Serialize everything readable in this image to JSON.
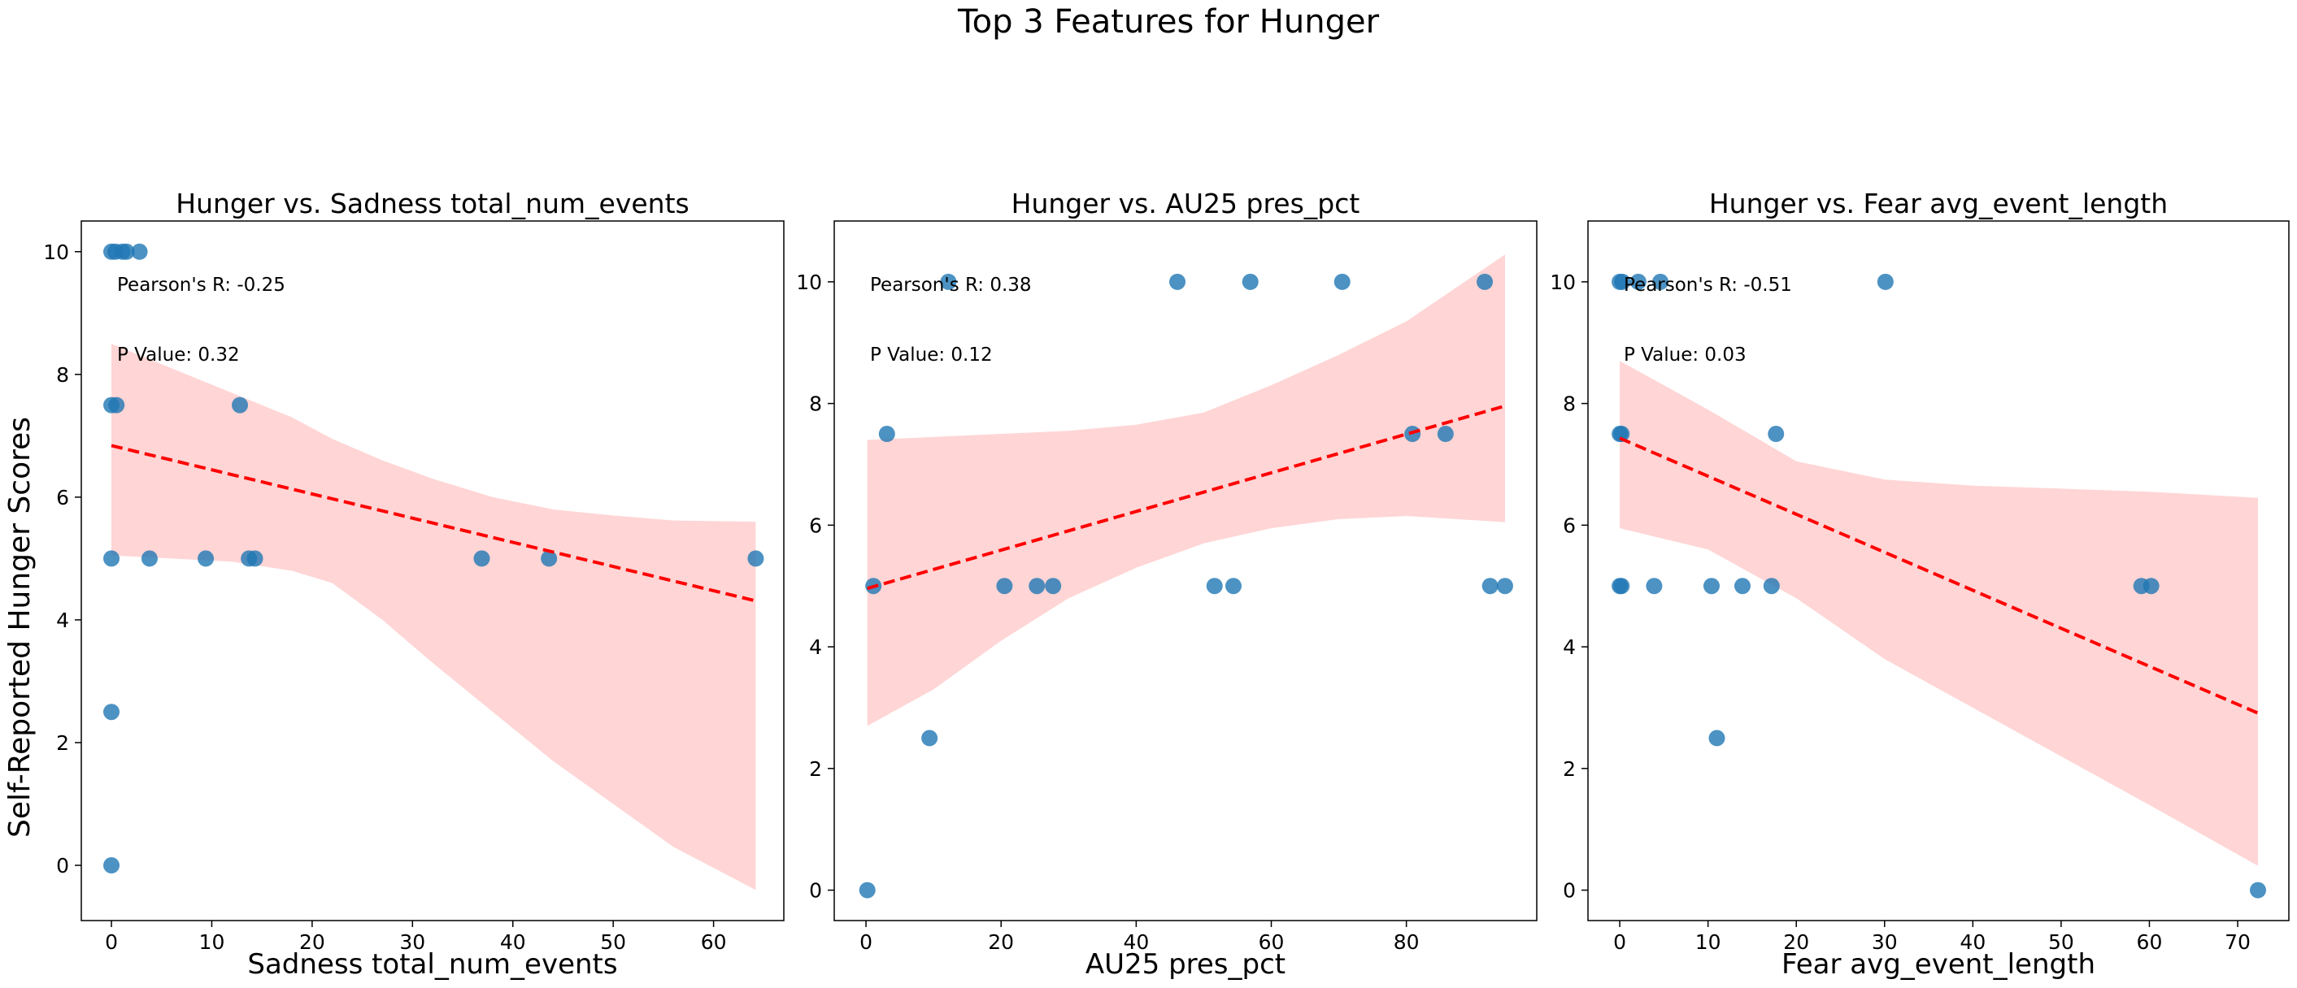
{
  "figure": {
    "suptitle": "Top 3 Features for Hunger",
    "shared_ylabel": "Self-Reported Hunger Scores"
  },
  "colors": {
    "points": "#1f77b4",
    "regression_line": "#ff0000",
    "confidence_band": "#ffb3b3"
  },
  "chart_data": [
    {
      "type": "scatter",
      "title": "Hunger vs. Sadness total_num_events",
      "xlabel": "Sadness total_num_events",
      "ylabel": "Self-Reported Hunger Scores",
      "xlim": [
        -3,
        67
      ],
      "ylim": [
        -0.9,
        10.5
      ],
      "xticks": [
        0,
        10,
        20,
        30,
        40,
        50,
        60
      ],
      "yticks": [
        0,
        2,
        4,
        6,
        8,
        10
      ],
      "annotations": [
        "Pearson's R: -0.25",
        "P Value: 0.32"
      ],
      "points": [
        {
          "x": 0,
          "y": 10
        },
        {
          "x": 0.4,
          "y": 10
        },
        {
          "x": 1.1,
          "y": 10
        },
        {
          "x": 1.5,
          "y": 10
        },
        {
          "x": 2.8,
          "y": 10
        },
        {
          "x": 0,
          "y": 7.5
        },
        {
          "x": 0.5,
          "y": 7.5
        },
        {
          "x": 12.8,
          "y": 7.5
        },
        {
          "x": 0,
          "y": 5
        },
        {
          "x": 3.8,
          "y": 5
        },
        {
          "x": 9.4,
          "y": 5
        },
        {
          "x": 13.7,
          "y": 5
        },
        {
          "x": 14.3,
          "y": 5
        },
        {
          "x": 36.9,
          "y": 5
        },
        {
          "x": 43.6,
          "y": 5
        },
        {
          "x": 64.2,
          "y": 5
        },
        {
          "x": 0,
          "y": 2.5
        },
        {
          "x": 0,
          "y": 0
        }
      ],
      "regression": {
        "x": [
          0,
          64.2
        ],
        "y": [
          6.84,
          4.31
        ]
      },
      "band": [
        {
          "x": 0,
          "lo": 5.05,
          "hi": 8.5
        },
        {
          "x": 6,
          "lo": 5.0,
          "hi": 8.1
        },
        {
          "x": 12,
          "lo": 4.95,
          "hi": 7.7
        },
        {
          "x": 18,
          "lo": 4.8,
          "hi": 7.3
        },
        {
          "x": 22,
          "lo": 4.6,
          "hi": 6.95
        },
        {
          "x": 27,
          "lo": 4.0,
          "hi": 6.6
        },
        {
          "x": 32,
          "lo": 3.3,
          "hi": 6.3
        },
        {
          "x": 38,
          "lo": 2.5,
          "hi": 6.0
        },
        {
          "x": 44,
          "lo": 1.7,
          "hi": 5.8
        },
        {
          "x": 50,
          "lo": 1.0,
          "hi": 5.7
        },
        {
          "x": 56,
          "lo": 0.3,
          "hi": 5.62
        },
        {
          "x": 64.2,
          "lo": -0.4,
          "hi": 5.6
        }
      ]
    },
    {
      "type": "scatter",
      "title": "Hunger vs. AU25 pres_pct",
      "xlabel": "AU25 pres_pct",
      "ylabel": "",
      "xlim": [
        -4.7,
        99.3
      ],
      "ylim": [
        -0.5,
        11.0
      ],
      "xticks": [
        0,
        20,
        40,
        60,
        80
      ],
      "yticks": [
        0,
        2,
        4,
        6,
        8,
        10
      ],
      "annotations": [
        "Pearson's R: 0.38",
        "P Value: 0.12"
      ],
      "points": [
        {
          "x": 0.2,
          "y": 0
        },
        {
          "x": 1.1,
          "y": 5
        },
        {
          "x": 3.1,
          "y": 7.5
        },
        {
          "x": 9.4,
          "y": 2.5
        },
        {
          "x": 12.2,
          "y": 10
        },
        {
          "x": 20.5,
          "y": 5
        },
        {
          "x": 25.3,
          "y": 5
        },
        {
          "x": 27.7,
          "y": 5
        },
        {
          "x": 46.1,
          "y": 10
        },
        {
          "x": 51.6,
          "y": 5
        },
        {
          "x": 54.4,
          "y": 5
        },
        {
          "x": 56.9,
          "y": 10
        },
        {
          "x": 70.5,
          "y": 10
        },
        {
          "x": 80.9,
          "y": 7.5
        },
        {
          "x": 85.8,
          "y": 7.5
        },
        {
          "x": 91.6,
          "y": 10
        },
        {
          "x": 92.4,
          "y": 5
        },
        {
          "x": 94.6,
          "y": 5
        }
      ],
      "regression": {
        "x": [
          0.2,
          94.6
        ],
        "y": [
          4.96,
          7.96
        ]
      },
      "band": [
        {
          "x": 0.2,
          "lo": 2.7,
          "hi": 7.4
        },
        {
          "x": 10,
          "lo": 3.3,
          "hi": 7.45
        },
        {
          "x": 20,
          "lo": 4.1,
          "hi": 7.5
        },
        {
          "x": 30,
          "lo": 4.8,
          "hi": 7.55
        },
        {
          "x": 40,
          "lo": 5.3,
          "hi": 7.65
        },
        {
          "x": 50,
          "lo": 5.7,
          "hi": 7.85
        },
        {
          "x": 60,
          "lo": 5.95,
          "hi": 8.3
        },
        {
          "x": 70,
          "lo": 6.1,
          "hi": 8.8
        },
        {
          "x": 80,
          "lo": 6.15,
          "hi": 9.35
        },
        {
          "x": 94.6,
          "lo": 6.05,
          "hi": 10.45
        }
      ]
    },
    {
      "type": "scatter",
      "title": "Hunger vs. Fear avg_event_length",
      "xlabel": "Fear avg_event_length",
      "ylabel": "",
      "xlim": [
        -3.6,
        75.8
      ],
      "ylim": [
        -0.5,
        11.0
      ],
      "xticks": [
        0,
        10,
        20,
        30,
        40,
        50,
        60,
        70
      ],
      "yticks": [
        0,
        2,
        4,
        6,
        8,
        10
      ],
      "annotations": [
        "Pearson's R: -0.51",
        "P Value: 0.03"
      ],
      "points": [
        {
          "x": 0,
          "y": 10
        },
        {
          "x": 0.3,
          "y": 10
        },
        {
          "x": 2.1,
          "y": 10
        },
        {
          "x": 4.6,
          "y": 10
        },
        {
          "x": 30.1,
          "y": 10
        },
        {
          "x": 0,
          "y": 7.5
        },
        {
          "x": 0.2,
          "y": 7.5
        },
        {
          "x": 17.7,
          "y": 7.5
        },
        {
          "x": 0,
          "y": 5
        },
        {
          "x": 0.2,
          "y": 5
        },
        {
          "x": 3.9,
          "y": 5
        },
        {
          "x": 10.4,
          "y": 5
        },
        {
          "x": 13.9,
          "y": 5
        },
        {
          "x": 17.2,
          "y": 5
        },
        {
          "x": 59.1,
          "y": 5
        },
        {
          "x": 60.2,
          "y": 5
        },
        {
          "x": 11.0,
          "y": 2.5
        },
        {
          "x": 72.3,
          "y": 0
        }
      ],
      "regression": {
        "x": [
          0,
          72.3
        ],
        "y": [
          7.43,
          2.91
        ]
      },
      "band": [
        {
          "x": 0,
          "lo": 5.95,
          "hi": 8.7
        },
        {
          "x": 10,
          "lo": 5.6,
          "hi": 7.9
        },
        {
          "x": 20,
          "lo": 4.8,
          "hi": 7.05
        },
        {
          "x": 30,
          "lo": 3.8,
          "hi": 6.75
        },
        {
          "x": 40,
          "lo": 3.0,
          "hi": 6.65
        },
        {
          "x": 50,
          "lo": 2.2,
          "hi": 6.6
        },
        {
          "x": 60,
          "lo": 1.4,
          "hi": 6.55
        },
        {
          "x": 72.3,
          "lo": 0.4,
          "hi": 6.45
        }
      ]
    }
  ]
}
